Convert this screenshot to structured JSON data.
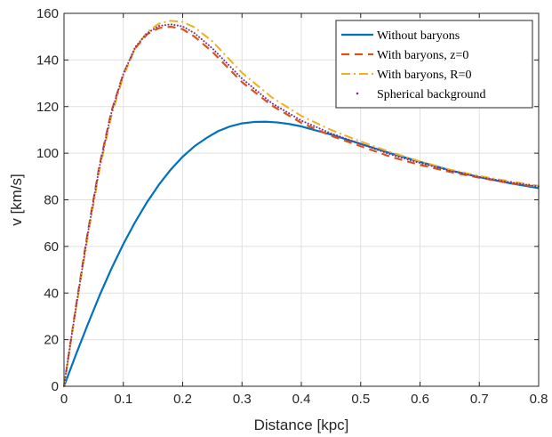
{
  "chart_data": {
    "type": "line",
    "xlabel": "Distance [kpc]",
    "ylabel": "v [km/s]",
    "xlim": [
      0,
      0.8
    ],
    "ylim": [
      0,
      160
    ],
    "xticks": [
      "0",
      "0.1",
      "0.2",
      "0.3",
      "0.4",
      "0.5",
      "0.6",
      "0.7",
      "0.8"
    ],
    "yticks": [
      "0",
      "20",
      "40",
      "60",
      "80",
      "100",
      "120",
      "140",
      "160"
    ],
    "grid": true,
    "legend_position": "top-right",
    "series": [
      {
        "name": "Without baryons",
        "color": "#0072BD",
        "style": "solid",
        "x": [
          0,
          0.02,
          0.04,
          0.06,
          0.08,
          0.1,
          0.12,
          0.14,
          0.16,
          0.18,
          0.2,
          0.22,
          0.24,
          0.26,
          0.28,
          0.3,
          0.32,
          0.34,
          0.36,
          0.38,
          0.4,
          0.45,
          0.5,
          0.55,
          0.6,
          0.65,
          0.7,
          0.75,
          0.8
        ],
        "y": [
          0,
          13.5,
          26.5,
          39,
          50.5,
          61,
          70.5,
          79,
          86.5,
          93,
          98.5,
          103,
          106.5,
          109.5,
          111.5,
          112.8,
          113.4,
          113.5,
          113.2,
          112.5,
          111.5,
          108,
          104,
          100,
          96.3,
          92.7,
          89.7,
          87.2,
          85
        ]
      },
      {
        "name": "With baryons, z=0",
        "color": "#D95319",
        "style": "dashed",
        "x": [
          0,
          0.01,
          0.02,
          0.04,
          0.06,
          0.08,
          0.1,
          0.12,
          0.14,
          0.16,
          0.18,
          0.2,
          0.22,
          0.25,
          0.3,
          0.35,
          0.4,
          0.45,
          0.5,
          0.55,
          0.6,
          0.65,
          0.7,
          0.75,
          0.8
        ],
        "y": [
          0,
          17,
          34,
          66,
          95,
          118,
          134,
          145,
          151,
          153.7,
          154.3,
          153.2,
          150,
          143.5,
          130.5,
          120.5,
          113,
          107.5,
          103,
          98.5,
          95,
          92,
          89.5,
          87.3,
          85.5
        ]
      },
      {
        "name": "With baryons, R=0",
        "color": "#EDB120",
        "style": "dashdot",
        "x": [
          0,
          0.01,
          0.02,
          0.04,
          0.06,
          0.08,
          0.1,
          0.12,
          0.14,
          0.16,
          0.18,
          0.2,
          0.22,
          0.25,
          0.3,
          0.35,
          0.4,
          0.45,
          0.5,
          0.55,
          0.6,
          0.65,
          0.7,
          0.75,
          0.8
        ],
        "y": [
          0,
          16.5,
          33,
          64,
          93,
          116,
          133,
          145,
          152,
          155.6,
          156.8,
          156.3,
          154,
          148,
          134.5,
          124,
          116,
          110,
          105,
          100.5,
          96.5,
          93,
          90.2,
          88,
          86
        ]
      },
      {
        "name": "Spherical background",
        "color": "#7E2F8E",
        "style": "dotted",
        "x": [
          0,
          0.01,
          0.02,
          0.04,
          0.06,
          0.08,
          0.1,
          0.12,
          0.14,
          0.16,
          0.18,
          0.2,
          0.22,
          0.25,
          0.3,
          0.35,
          0.4,
          0.45,
          0.5,
          0.55,
          0.6,
          0.65,
          0.7,
          0.75,
          0.8
        ],
        "y": [
          0,
          17,
          33.5,
          65.5,
          94.5,
          117.5,
          134,
          145.5,
          151.5,
          154.6,
          155.3,
          154.4,
          151.5,
          145,
          132,
          121.5,
          114,
          108.5,
          104,
          99.5,
          95.8,
          92.5,
          89.8,
          87.6,
          85.7
        ]
      }
    ]
  }
}
